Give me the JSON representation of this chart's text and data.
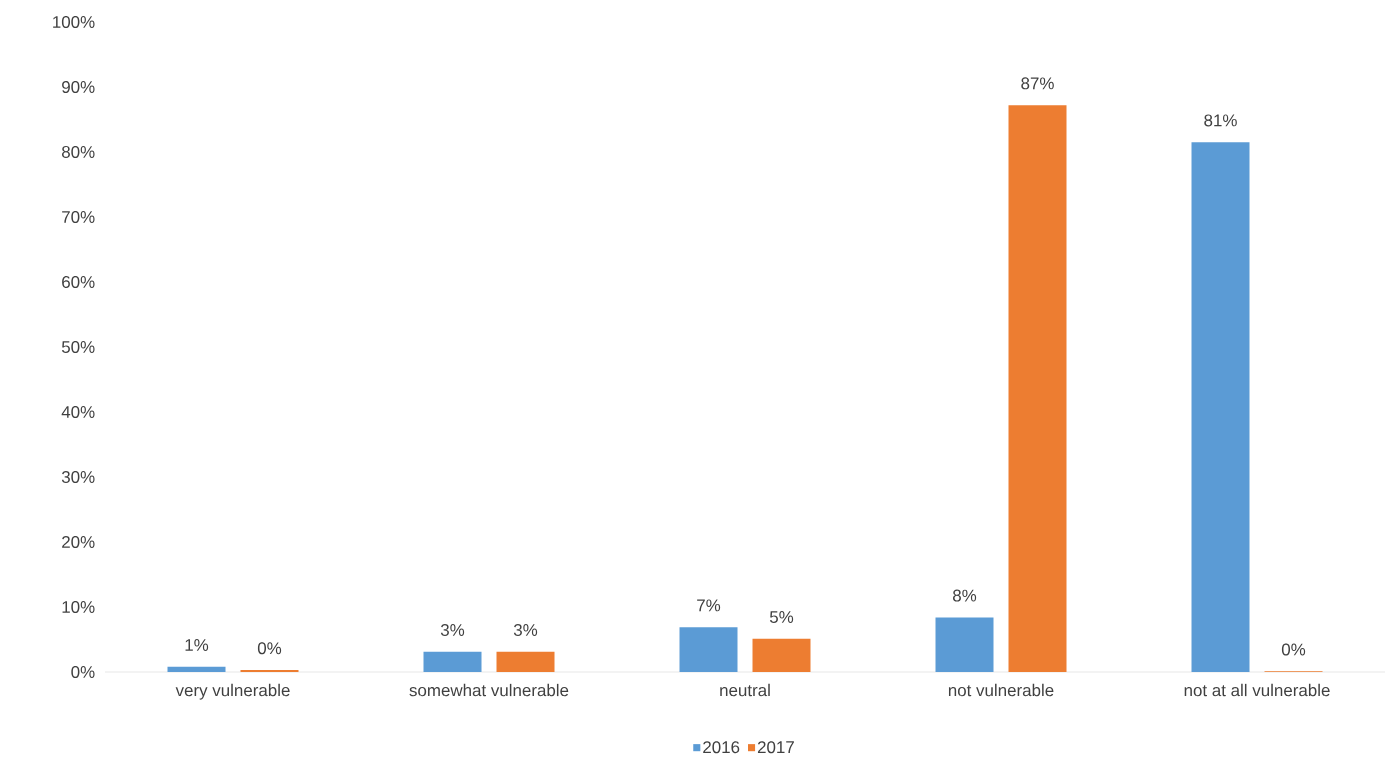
{
  "chart_data": {
    "type": "bar",
    "categories": [
      "very vulnerable",
      "somewhat vulnerable",
      "neutral",
      "not vulnerable",
      "not at all vulnerable"
    ],
    "series": [
      {
        "name": "2016",
        "color": "#5b9bd5",
        "values": [
          0.8,
          3.1,
          6.9,
          8.4,
          81.5
        ],
        "value_labels": [
          "1%",
          "3%",
          "7%",
          "8%",
          "81%"
        ]
      },
      {
        "name": "2017",
        "color": "#ed7d31",
        "values": [
          0.3,
          3.1,
          5.1,
          87.2,
          0.1
        ],
        "value_labels": [
          "0%",
          "3%",
          "5%",
          "87%",
          "0%"
        ]
      }
    ],
    "ylim": [
      0,
      100
    ],
    "yticks": [
      {
        "value": 0,
        "label": "0%"
      },
      {
        "value": 10,
        "label": "10%"
      },
      {
        "value": 20,
        "label": "20%"
      },
      {
        "value": 30,
        "label": "30%"
      },
      {
        "value": 40,
        "label": "40%"
      },
      {
        "value": 50,
        "label": "50%"
      },
      {
        "value": 60,
        "label": "60%"
      },
      {
        "value": 70,
        "label": "70%"
      },
      {
        "value": 80,
        "label": "80%"
      },
      {
        "value": 90,
        "label": "90%"
      },
      {
        "value": 100,
        "label": "100%"
      }
    ],
    "legend": "bottom"
  }
}
